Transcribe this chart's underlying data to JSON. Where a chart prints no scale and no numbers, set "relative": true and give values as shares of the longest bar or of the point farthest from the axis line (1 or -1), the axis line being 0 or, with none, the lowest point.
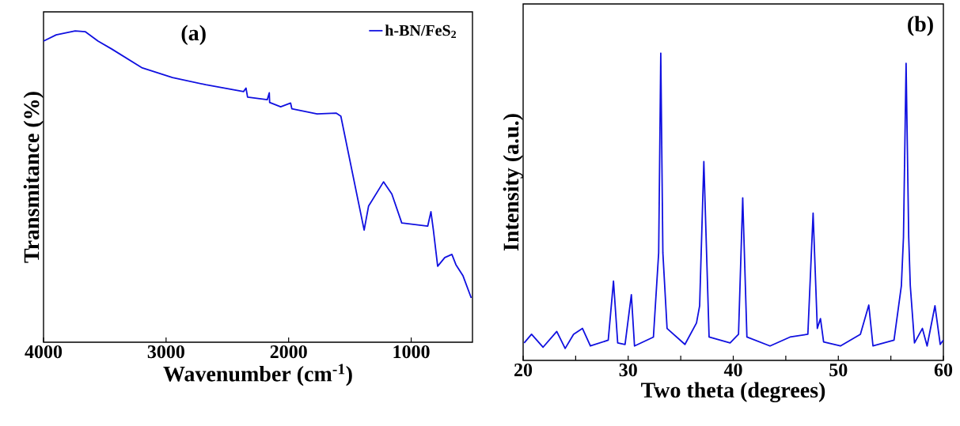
{
  "chart_data": [
    {
      "type": "line",
      "relative": true,
      "xlabel": "Wavenumber (cm$^{-1}$)",
      "ylabel": "Transmitance (%)",
      "annotations": [
        "(a)"
      ],
      "legend": "top right",
      "tick_labels": "x",
      "xlim": [
        4000,
        500
      ],
      "xticks": [
        4000,
        3000,
        2000,
        1000
      ],
      "x": [
        4000,
        3897,
        3742,
        3658,
        3555,
        3445,
        3194,
        2948,
        2677,
        2368,
        2348,
        2335,
        2174,
        2158,
        2155,
        2065,
        1984,
        1974,
        1768,
        1613,
        1574,
        1384,
        1348,
        1226,
        1158,
        1077,
        865,
        839,
        819,
        784,
        726,
        668,
        635,
        577,
        510
      ],
      "series": [
        {
          "name": "h-BN/FeS$_{2}$",
          "color": "#1010e0",
          "values": [
            0.967,
            0.987,
            1,
            0.997,
            0.967,
            0.942,
            0.881,
            0.85,
            0.827,
            0.805,
            0.816,
            0.787,
            0.779,
            0.801,
            0.77,
            0.756,
            0.768,
            0.75,
            0.733,
            0.736,
            0.726,
            0.36,
            0.437,
            0.515,
            0.476,
            0.383,
            0.373,
            0.419,
            0.36,
            0.244,
            0.272,
            0.282,
            0.249,
            0.213,
            0.142
          ]
        }
      ]
    },
    {
      "type": "line",
      "relative": true,
      "xlabel": "Two theta (degrees)",
      "ylabel": "Intensity (a.u.)",
      "annotations": [
        "(b)"
      ],
      "tick_labels": "x",
      "xlim": [
        20,
        60
      ],
      "xticks": [
        20,
        {
          "value": 25,
          "label": null
        },
        30,
        {
          "value": 35,
          "label": null
        },
        40,
        {
          "value": 45,
          "label": null
        },
        50,
        {
          "value": 55,
          "label": null
        },
        60
      ],
      "x": [
        20.1,
        20.8,
        21.9,
        23.2,
        24.0,
        24.8,
        25.65,
        26.4,
        28.1,
        28.6,
        29.0,
        29.7,
        30.3,
        30.6,
        32.4,
        32.9,
        33.1,
        33.3,
        33.7,
        35.4,
        36.5,
        36.8,
        37.2,
        37.7,
        39.7,
        40.5,
        40.9,
        41.3,
        43.5,
        45.4,
        47.1,
        47.6,
        48.0,
        48.3,
        48.6,
        50.2,
        52.1,
        52.9,
        53.3,
        55.3,
        56.0,
        56.2,
        56.45,
        56.7,
        56.85,
        57.25,
        58.0,
        58.45,
        59.2,
        59.7,
        60.0
      ],
      "series": [
        {
          "color": "#1010e0",
          "values": [
            0.057,
            0.085,
            0.043,
            0.094,
            0.039,
            0.085,
            0.104,
            0.047,
            0.066,
            0.258,
            0.057,
            0.052,
            0.214,
            0.047,
            0.076,
            0.35,
            1.0,
            0.35,
            0.104,
            0.052,
            0.122,
            0.178,
            0.647,
            0.076,
            0.057,
            0.085,
            0.529,
            0.076,
            0.047,
            0.076,
            0.085,
            0.479,
            0.104,
            0.136,
            0.06,
            0.047,
            0.085,
            0.18,
            0.047,
            0.066,
            0.243,
            0.4,
            0.967,
            0.4,
            0.243,
            0.057,
            0.104,
            0.047,
            0.178,
            0.052,
            0.066
          ]
        }
      ]
    }
  ]
}
